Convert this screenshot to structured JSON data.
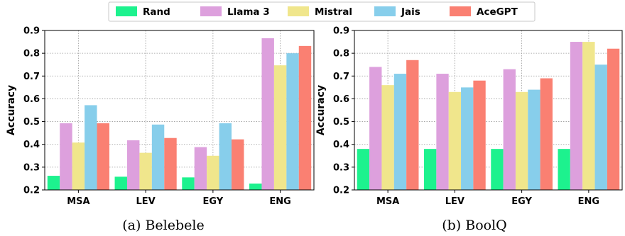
{
  "legend": {
    "entries": [
      {
        "name": "Rand",
        "color": "#1DF28E"
      },
      {
        "name": "Llama 3",
        "color": "#DDA0DD"
      },
      {
        "name": "Mistral",
        "color": "#F0E68C"
      },
      {
        "name": "Jais",
        "color": "#87CEEB"
      },
      {
        "name": "AceGPT",
        "color": "#FA8072"
      }
    ]
  },
  "chart_data": [
    {
      "type": "bar",
      "caption": "(a) Belebele",
      "xlabel": "",
      "ylabel": "Accuracy",
      "ylim": [
        0.2,
        0.9
      ],
      "yticks": [
        "0.2",
        "0.3",
        "0.4",
        "0.5",
        "0.6",
        "0.7",
        "0.8",
        "0.9"
      ],
      "grid": "dotted",
      "legend_position": "top-center",
      "categories": [
        "MSA",
        "LEV",
        "EGY",
        "ENG"
      ],
      "series": [
        {
          "name": "Rand",
          "values": [
            0.262,
            0.258,
            0.255,
            0.228
          ]
        },
        {
          "name": "Llama 3",
          "values": [
            0.493,
            0.418,
            0.388,
            0.866
          ]
        },
        {
          "name": "Mistral",
          "values": [
            0.408,
            0.363,
            0.35,
            0.747
          ]
        },
        {
          "name": "Jais",
          "values": [
            0.572,
            0.487,
            0.493,
            0.8
          ]
        },
        {
          "name": "AceGPT",
          "values": [
            0.493,
            0.428,
            0.422,
            0.832
          ]
        }
      ]
    },
    {
      "type": "bar",
      "caption": "(b) BoolQ",
      "xlabel": "",
      "ylabel": "Accuracy",
      "ylim": [
        0.2,
        0.9
      ],
      "yticks": [
        "0.2",
        "0.3",
        "0.4",
        "0.5",
        "0.6",
        "0.7",
        "0.8",
        "0.9"
      ],
      "grid": "dotted",
      "legend_position": "top-center",
      "categories": [
        "MSA",
        "LEV",
        "EGY",
        "ENG"
      ],
      "series": [
        {
          "name": "Rand",
          "values": [
            0.38,
            0.38,
            0.38,
            0.38
          ]
        },
        {
          "name": "Llama 3",
          "values": [
            0.74,
            0.71,
            0.73,
            0.85
          ]
        },
        {
          "name": "Mistral",
          "values": [
            0.66,
            0.63,
            0.63,
            0.85
          ]
        },
        {
          "name": "Jais",
          "values": [
            0.71,
            0.65,
            0.64,
            0.75
          ]
        },
        {
          "name": "AceGPT",
          "values": [
            0.77,
            0.68,
            0.69,
            0.82
          ]
        }
      ]
    }
  ]
}
